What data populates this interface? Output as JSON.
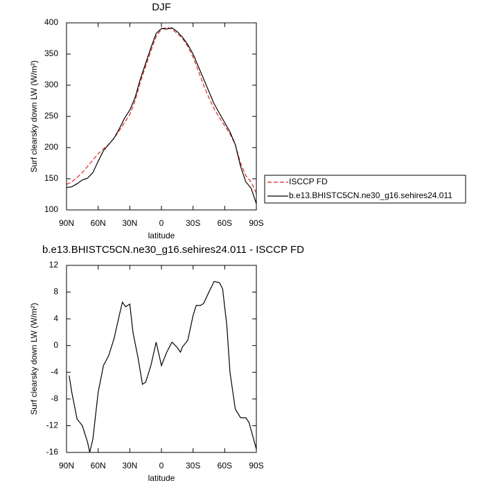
{
  "chart_data": [
    {
      "type": "line",
      "title": "DJF",
      "xlabel": "latitude",
      "ylabel": "Surf clearsky down LW (W/m²)",
      "x": [
        90,
        85,
        80,
        75,
        70,
        65,
        60,
        55,
        50,
        45,
        40,
        35,
        30,
        25,
        20,
        15,
        10,
        5,
        0,
        -5,
        -10,
        -15,
        -20,
        -25,
        -30,
        -35,
        -40,
        -45,
        -50,
        -55,
        -60,
        -65,
        -70,
        -75,
        -80,
        -85,
        -90
      ],
      "series": [
        {
          "name": "ISCCP FD",
          "color": "#e0221f",
          "dashed": true,
          "values": [
            141,
            145,
            152,
            160,
            170,
            180,
            190,
            198,
            205,
            215,
            227,
            240,
            253,
            275,
            305,
            330,
            355,
            378,
            390,
            393,
            390,
            383,
            375,
            362,
            345,
            323,
            300,
            280,
            262,
            248,
            235,
            222,
            205,
            175,
            155,
            145,
            127
          ]
        },
        {
          "name": "b.e13.BHISTC5CN.ne30_g16.sehires24.011",
          "color": "#000000",
          "dashed": false,
          "values": [
            136,
            137,
            142,
            148,
            151,
            160,
            178,
            195,
            205,
            215,
            230,
            247,
            260,
            280,
            310,
            335,
            360,
            383,
            391,
            390,
            392,
            386,
            377,
            365,
            350,
            330,
            310,
            290,
            270,
            255,
            240,
            225,
            205,
            170,
            145,
            135,
            110
          ]
        }
      ],
      "xlim": [
        90,
        -90
      ],
      "xticks": [
        {
          "value": 90,
          "label": "90N"
        },
        {
          "value": 60,
          "label": "60N"
        },
        {
          "value": 30,
          "label": "30N"
        },
        0,
        {
          "value": -30,
          "label": "30S"
        },
        {
          "value": -60,
          "label": "60S"
        },
        {
          "value": -90,
          "label": "90S"
        }
      ],
      "ylim": [
        100,
        400
      ],
      "yticks": [
        100,
        150,
        200,
        250,
        300,
        350,
        400
      ],
      "legend": "outside-right"
    },
    {
      "type": "line",
      "title": "b.e13.BHISTC5CN.ne30_g16.sehires24.011 - ISCCP FD",
      "xlabel": "latitude",
      "ylabel": "Surf clearsky down LW (W/m²)",
      "x": [
        87.5,
        85,
        80,
        75,
        70,
        68,
        65,
        60,
        55,
        50,
        45,
        40,
        37,
        34,
        30,
        27,
        22,
        18,
        15,
        10,
        5,
        0,
        -5,
        -10,
        -15,
        -18,
        -20,
        -25,
        -30,
        -33,
        -37,
        -40,
        -45,
        -50,
        -55,
        -58,
        -62,
        -65,
        -70,
        -75,
        -80,
        -83,
        -90
      ],
      "values": [
        -4.5,
        -7,
        -11,
        -12,
        -14.5,
        -16,
        -14,
        -7,
        -3,
        -1.5,
        1,
        4.5,
        6.5,
        5.8,
        6.2,
        2,
        -2,
        -5.8,
        -5.5,
        -3,
        0.5,
        -3,
        -1,
        0.5,
        -0.3,
        -1,
        -0.2,
        0.8,
        4.5,
        6,
        6,
        6.3,
        8,
        9.6,
        9.4,
        8.5,
        3,
        -4,
        -9.5,
        -10.8,
        -10.8,
        -11.5,
        -15.5
      ],
      "color": "#000000",
      "xlim": [
        90,
        -90
      ],
      "xticks": [
        {
          "value": 90,
          "label": "90N"
        },
        {
          "value": 60,
          "label": "60N"
        },
        {
          "value": 30,
          "label": "30N"
        },
        0,
        {
          "value": -30,
          "label": "30S"
        },
        {
          "value": -60,
          "label": "60S"
        },
        {
          "value": -90,
          "label": "90S"
        }
      ],
      "ylim": [
        -16,
        12
      ],
      "yticks": [
        -16,
        -12,
        -8,
        -4,
        0,
        4,
        8,
        12
      ]
    }
  ]
}
